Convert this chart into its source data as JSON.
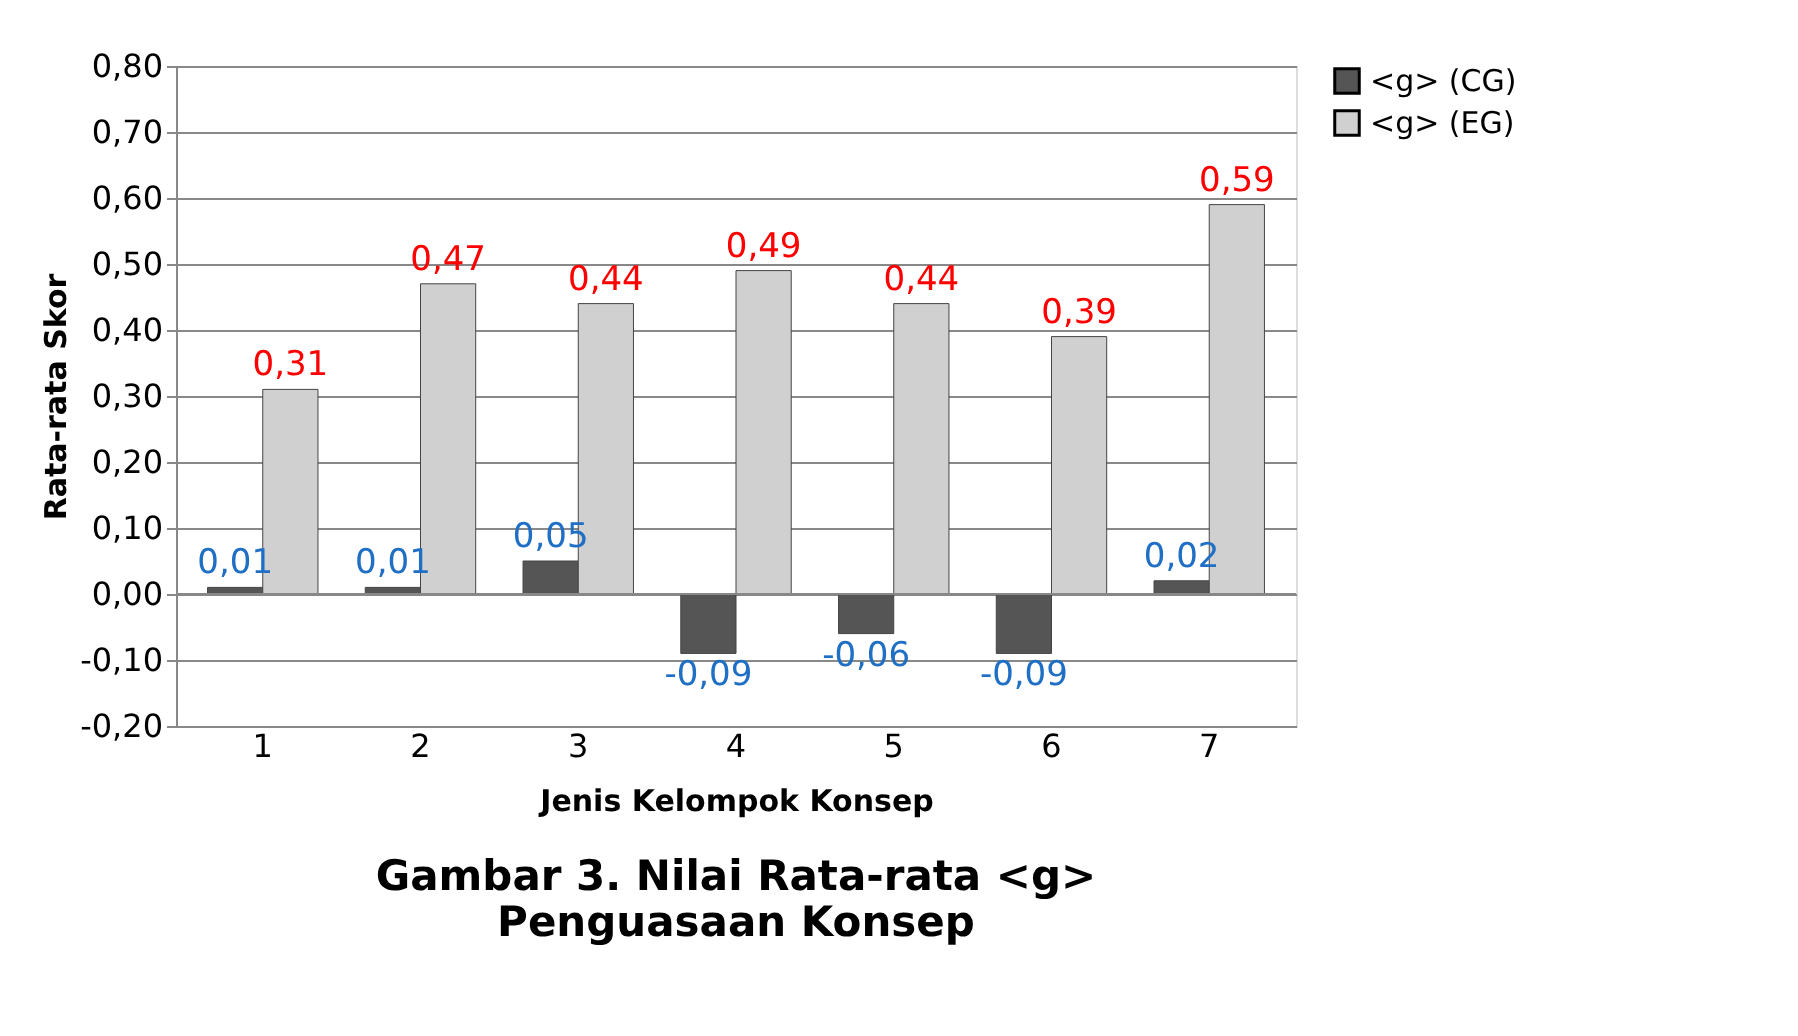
{
  "chart_data": {
    "type": "bar",
    "title": "Gambar 3. Nilai Rata-rata <g>\nPenguasaan Konsep",
    "xlabel": "Jenis Kelompok Konsep",
    "ylabel": "Rata-rata Skor",
    "categories": [
      "1",
      "2",
      "3",
      "4",
      "5",
      "6",
      "7"
    ],
    "series": [
      {
        "name": "<g> (CG)",
        "color": "#555555",
        "values": [
          0.01,
          0.01,
          0.05,
          -0.09,
          -0.06,
          -0.09,
          0.02
        ]
      },
      {
        "name": "<g> (EG)",
        "color": "#d0d0d0",
        "values": [
          0.31,
          0.47,
          0.44,
          0.49,
          0.44,
          0.39,
          0.59
        ]
      }
    ],
    "ylim": [
      -0.2,
      0.8
    ],
    "yticks": [
      {
        "value": -0.2,
        "label": "-0,20"
      },
      {
        "value": -0.1,
        "label": "-0,10"
      },
      {
        "value": 0,
        "label": "0,00"
      },
      {
        "value": 0.1,
        "label": "0,10"
      },
      {
        "value": 0.2,
        "label": "0,20"
      },
      {
        "value": 0.3,
        "label": "0,30"
      },
      {
        "value": 0.4,
        "label": "0,40"
      },
      {
        "value": 0.5,
        "label": "0,50"
      },
      {
        "value": 0.6,
        "label": "0,60"
      },
      {
        "value": 0.7,
        "label": "0,70"
      },
      {
        "value": 0.8,
        "label": "0,80"
      }
    ],
    "value_labels": [
      [
        "0,01",
        "0,01",
        "0,05",
        "-0,09",
        "-0,06",
        "-0,09",
        "0,02"
      ],
      [
        "0,31",
        "0,47",
        "0,44",
        "0,49",
        "0,44",
        "0,39",
        "0,59"
      ]
    ],
    "grid": "y",
    "legend": "right"
  }
}
